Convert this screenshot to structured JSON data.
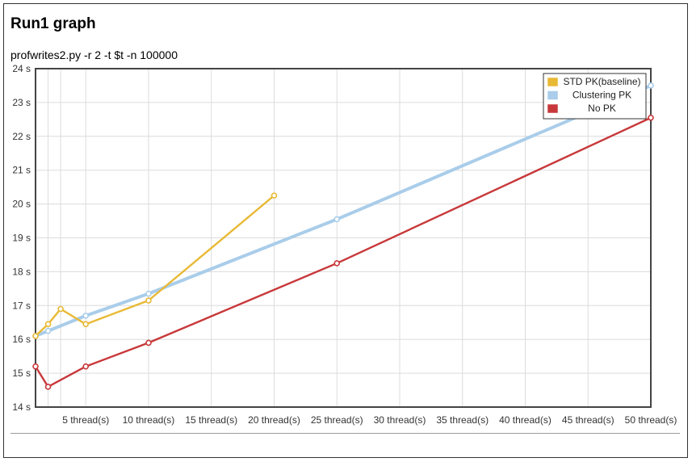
{
  "page": {
    "title": "Run1 graph"
  },
  "chart_data": {
    "type": "line",
    "title": "profwrites2.py -r 2 -t $t -n 100000",
    "xlabel": "",
    "ylabel": "",
    "xlim": [
      0,
      49
    ],
    "ylim": [
      14,
      24
    ],
    "x_ticks": [
      {
        "value": 4,
        "label": "5 thread(s)"
      },
      {
        "value": 9,
        "label": "10 thread(s)"
      },
      {
        "value": 14,
        "label": "15 thread(s)"
      },
      {
        "value": 19,
        "label": "20 thread(s)"
      },
      {
        "value": 24,
        "label": "25 thread(s)"
      },
      {
        "value": 29,
        "label": "30 thread(s)"
      },
      {
        "value": 34,
        "label": "35 thread(s)"
      },
      {
        "value": 39,
        "label": "40 thread(s)"
      },
      {
        "value": 44,
        "label": "45 thread(s)"
      },
      {
        "value": 49,
        "label": "50 thread(s)"
      }
    ],
    "x_minor_gridlines": [
      1,
      2
    ],
    "y_ticks": [
      {
        "value": 14,
        "label": "14 s"
      },
      {
        "value": 15,
        "label": "15 s"
      },
      {
        "value": 16,
        "label": "16 s"
      },
      {
        "value": 17,
        "label": "17 s"
      },
      {
        "value": 18,
        "label": "18 s"
      },
      {
        "value": 19,
        "label": "19 s"
      },
      {
        "value": 20,
        "label": "20 s"
      },
      {
        "value": 21,
        "label": "21 s"
      },
      {
        "value": 22,
        "label": "22 s"
      },
      {
        "value": 23,
        "label": "23 s"
      },
      {
        "value": 24,
        "label": "24 s"
      }
    ],
    "grid": true,
    "legend_position": "top-right",
    "series": [
      {
        "name": "STD PK(baseline)",
        "color": "#e8b935",
        "x": [
          0,
          1,
          2,
          4,
          9,
          19
        ],
        "y": [
          16.1,
          16.45,
          16.9,
          16.45,
          17.15,
          20.25
        ]
      },
      {
        "name": "Clustering PK",
        "color": "#a9cdea",
        "x": [
          0,
          1,
          4,
          9,
          24,
          49
        ],
        "y": [
          16.1,
          16.25,
          16.7,
          17.35,
          19.55,
          23.5
        ]
      },
      {
        "name": "No PK",
        "color": "#c8383a",
        "x": [
          0,
          1,
          4,
          9,
          24,
          49
        ],
        "y": [
          15.2,
          14.6,
          15.2,
          15.9,
          18.25,
          22.55
        ]
      }
    ]
  }
}
